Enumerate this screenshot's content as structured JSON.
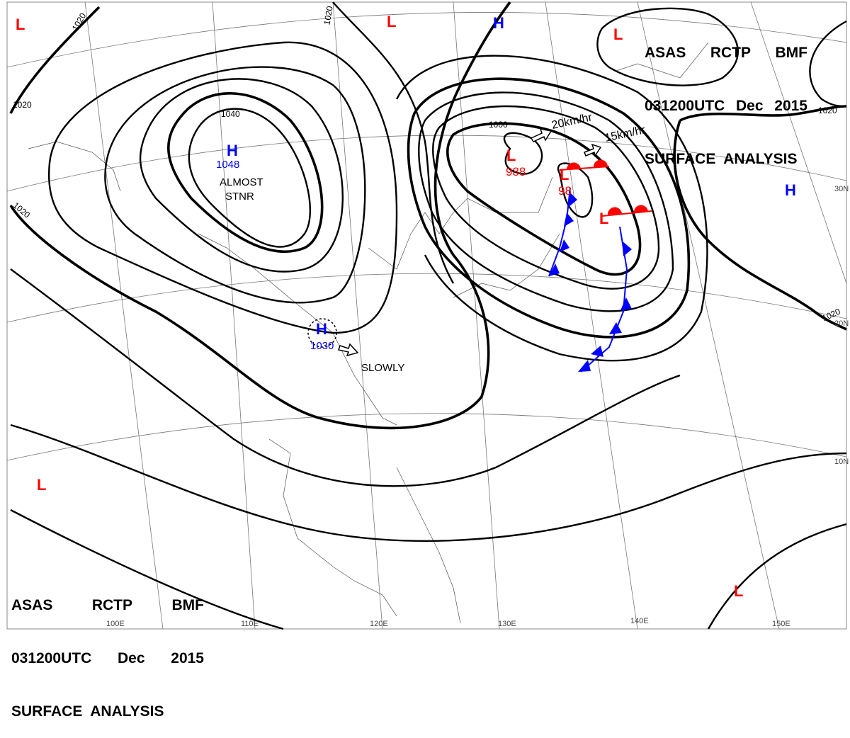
{
  "header": {
    "line1": [
      "ASAS",
      "RCTP",
      "BMF"
    ],
    "line2": [
      "031200UTC",
      "Dec",
      "2015"
    ],
    "line3": "SURFACE  ANALYSIS"
  },
  "colors": {
    "low": "#ff0000",
    "high": "#0000ff",
    "isobar": "#000000",
    "warm_front": "#ff0000",
    "cold_front": "#0000ff"
  },
  "centers": {
    "high_1": {
      "symbol": "H",
      "pressure": "1048",
      "note_1": "ALMOST",
      "note_2": "STNR"
    },
    "high_2": {
      "symbol": "H",
      "pressure": "1030",
      "motion": "SLOWLY"
    },
    "high_3": {
      "symbol": "H"
    },
    "high_4": {
      "symbol": "H"
    },
    "low_1": {
      "symbol": "L",
      "pressure": "988"
    },
    "low_2": {
      "symbol": "L",
      "pressure": "98"
    },
    "low_3": {
      "symbol": "L"
    },
    "low_4": {
      "symbol": "L"
    },
    "low_5": {
      "symbol": "L"
    },
    "low_6": {
      "symbol": "L"
    },
    "low_7": {
      "symbol": "L"
    },
    "low_8": {
      "symbol": "L"
    }
  },
  "motions": {
    "speed_1": "20km/hr",
    "speed_2": "15km/hr"
  },
  "isobar_labels": [
    "1020",
    "1020",
    "1040",
    "1020",
    "1020",
    "1000",
    "1020",
    "1020"
  ],
  "latitudes": [
    "30N",
    "20N",
    "10N"
  ],
  "longitudes": [
    "100E",
    "110E",
    "120E",
    "130E",
    "140E",
    "150E"
  ]
}
